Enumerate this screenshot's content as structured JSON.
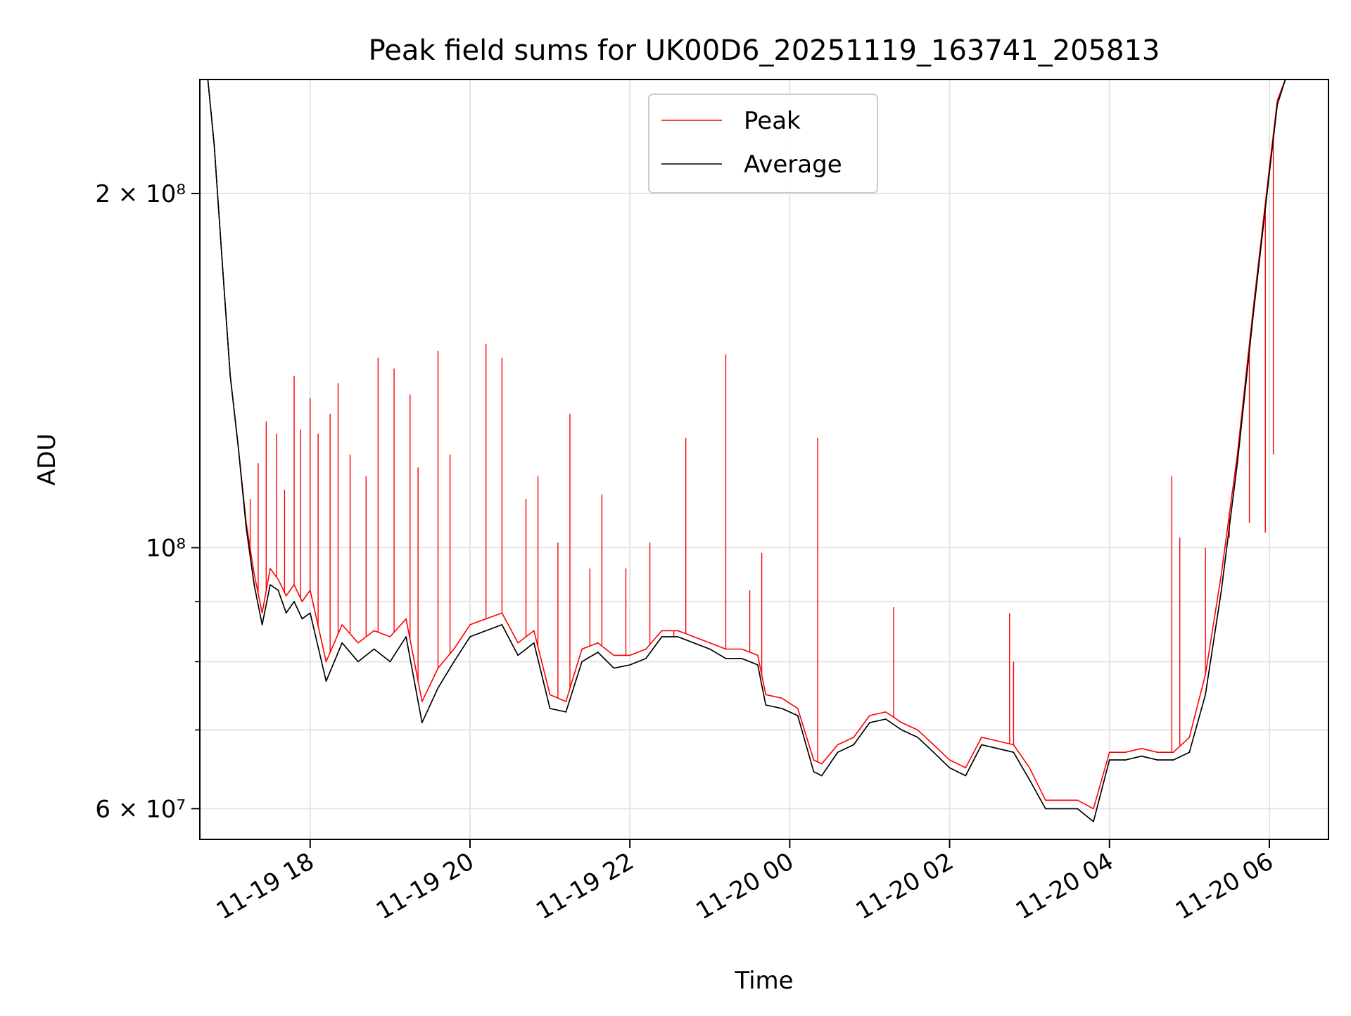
{
  "chart_data": {
    "type": "line",
    "title": "Peak field sums for UK00D6_20251119_163741_205813",
    "xlabel": "Time",
    "ylabel": "ADU",
    "yscale": "log",
    "grid": true,
    "legend_position": "top-center",
    "ylim": [
      56500000,
      250000000
    ],
    "xlim_hours": [
      16.62,
      30.74
    ],
    "y_ticks": [
      {
        "value": 200000000,
        "label": "2 × 10⁸"
      },
      {
        "value": 100000000,
        "label": "10⁸"
      },
      {
        "value": 60000000,
        "label": "6 × 10⁷"
      }
    ],
    "y_minor_ticks": [
      70000000,
      80000000,
      90000000
    ],
    "x_ticks": [
      {
        "hour": 18,
        "label": "11-19 18"
      },
      {
        "hour": 20,
        "label": "11-19 20"
      },
      {
        "hour": 22,
        "label": "11-19 22"
      },
      {
        "hour": 24,
        "label": "11-20 00"
      },
      {
        "hour": 26,
        "label": "11-20 02"
      },
      {
        "hour": 28,
        "label": "11-20 04"
      },
      {
        "hour": 30,
        "label": "11-20 06"
      }
    ],
    "series": [
      {
        "name": "Peak",
        "color": "#ff0000",
        "x_hours": [
          16.72,
          16.8,
          16.9,
          17.0,
          17.1,
          17.2,
          17.3,
          17.4,
          17.5,
          17.6,
          17.7,
          17.8,
          17.9,
          18.0,
          18.2,
          18.4,
          18.6,
          18.8,
          19.0,
          19.2,
          19.4,
          19.6,
          19.8,
          20.0,
          20.2,
          20.4,
          20.6,
          20.8,
          21.0,
          21.2,
          21.4,
          21.6,
          21.8,
          22.0,
          22.2,
          22.4,
          22.6,
          22.8,
          23.0,
          23.2,
          23.4,
          23.6,
          23.7,
          23.9,
          24.1,
          24.3,
          24.4,
          24.6,
          24.8,
          25.0,
          25.2,
          25.4,
          25.6,
          25.8,
          26.0,
          26.2,
          26.4,
          26.6,
          26.8,
          27.0,
          27.2,
          27.4,
          27.6,
          27.8,
          28.0,
          28.2,
          28.4,
          28.6,
          28.8,
          29.0,
          29.2,
          29.4,
          29.6,
          29.8,
          30.0,
          30.1,
          30.2,
          30.3,
          30.4,
          30.5
        ],
        "values": [
          250000000,
          220000000,
          175000000,
          140000000,
          122000000,
          105000000,
          95000000,
          88000000,
          96000000,
          94000000,
          91000000,
          93000000,
          90000000,
          92000000,
          80000000,
          86000000,
          83000000,
          85000000,
          84000000,
          87000000,
          74000000,
          79000000,
          82000000,
          86000000,
          87000000,
          88000000,
          83000000,
          85000000,
          75000000,
          74000000,
          82000000,
          83000000,
          81000000,
          81000000,
          82000000,
          85000000,
          85000000,
          84000000,
          83000000,
          82000000,
          82000000,
          81000000,
          75000000,
          74500000,
          73000000,
          66000000,
          65500000,
          68000000,
          69000000,
          72000000,
          72500000,
          71000000,
          70000000,
          68000000,
          66000000,
          65000000,
          69000000,
          68500000,
          68000000,
          65000000,
          61000000,
          61000000,
          61000000,
          60000000,
          67000000,
          67000000,
          67500000,
          67000000,
          67000000,
          69000000,
          78000000,
          95000000,
          120000000,
          160000000,
          210000000,
          240000000,
          250000000,
          250000000,
          250000000,
          250000000
        ]
      },
      {
        "name": "Average",
        "color": "#000000",
        "x_hours": [
          16.72,
          16.8,
          16.9,
          17.0,
          17.1,
          17.2,
          17.3,
          17.4,
          17.5,
          17.6,
          17.7,
          17.8,
          17.9,
          18.0,
          18.2,
          18.4,
          18.6,
          18.8,
          19.0,
          19.2,
          19.4,
          19.6,
          19.8,
          20.0,
          20.2,
          20.4,
          20.6,
          20.8,
          21.0,
          21.2,
          21.4,
          21.6,
          21.8,
          22.0,
          22.2,
          22.4,
          22.6,
          22.8,
          23.0,
          23.2,
          23.4,
          23.6,
          23.7,
          23.9,
          24.1,
          24.3,
          24.4,
          24.6,
          24.8,
          25.0,
          25.2,
          25.4,
          25.6,
          25.8,
          26.0,
          26.2,
          26.4,
          26.6,
          26.8,
          27.0,
          27.2,
          27.4,
          27.6,
          27.8,
          28.0,
          28.2,
          28.4,
          28.6,
          28.8,
          29.0,
          29.2,
          29.4,
          29.6,
          29.8,
          30.0,
          30.1,
          30.2,
          30.3,
          30.4,
          30.5
        ],
        "values": [
          250000000,
          220000000,
          175000000,
          140000000,
          122000000,
          104000000,
          93000000,
          86000000,
          93000000,
          92000000,
          88000000,
          90000000,
          87000000,
          88000000,
          77000000,
          83000000,
          80000000,
          82000000,
          80000000,
          84000000,
          71000000,
          76000000,
          80000000,
          84000000,
          85000000,
          86000000,
          81000000,
          83000000,
          73000000,
          72500000,
          80000000,
          81500000,
          79000000,
          79500000,
          80500000,
          84000000,
          84000000,
          83000000,
          82000000,
          80500000,
          80500000,
          79500000,
          73500000,
          73000000,
          72000000,
          64500000,
          64000000,
          67000000,
          68000000,
          71000000,
          71500000,
          70000000,
          69000000,
          67000000,
          65000000,
          64000000,
          68000000,
          67500000,
          67000000,
          63500000,
          60000000,
          60000000,
          60000000,
          58500000,
          66000000,
          66000000,
          66500000,
          66000000,
          66000000,
          67000000,
          75000000,
          92000000,
          118000000,
          158000000,
          208000000,
          238000000,
          250000000,
          250000000,
          250000000,
          250000000
        ]
      }
    ],
    "spikes": {
      "series": "Peak",
      "x_hours": [
        17.25,
        17.35,
        17.45,
        17.58,
        17.68,
        17.8,
        17.88,
        18.0,
        18.1,
        18.25,
        18.35,
        18.5,
        18.7,
        18.85,
        19.05,
        19.25,
        19.35,
        19.6,
        19.75,
        20.2,
        20.4,
        20.7,
        20.85,
        21.1,
        21.25,
        21.5,
        21.65,
        21.95,
        22.25,
        22.55,
        22.7,
        23.2,
        23.5,
        23.65,
        24.35,
        25.3,
        26.75,
        26.8,
        28.78,
        28.88,
        29.2,
        29.5,
        29.75,
        29.95,
        30.05
      ],
      "values": [
        110000000,
        118000000,
        128000000,
        125000000,
        112000000,
        140000000,
        126000000,
        134000000,
        125000000,
        130000000,
        138000000,
        120000000,
        115000000,
        145000000,
        142000000,
        135000000,
        117000000,
        147000000,
        120000000,
        149000000,
        145000000,
        110000000,
        115000000,
        101000000,
        130000000,
        96000000,
        111000000,
        96000000,
        101000000,
        84000000,
        124000000,
        146000000,
        92000000,
        99000000,
        124000000,
        89000000,
        88000000,
        80000000,
        115000000,
        102000000,
        100000000,
        102000000,
        105000000,
        103000000,
        120000000
      ]
    },
    "legend": [
      "Peak",
      "Average"
    ]
  }
}
